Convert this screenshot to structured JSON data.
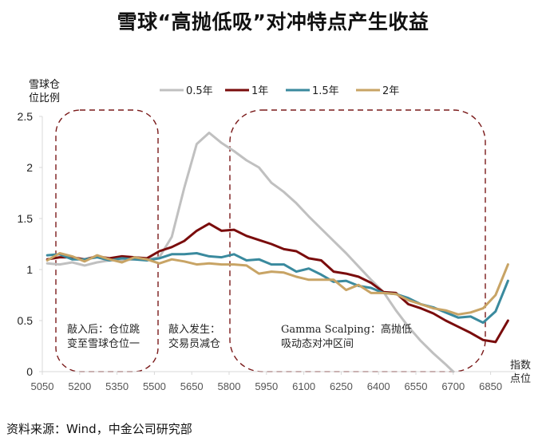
{
  "chart_data": {
    "type": "line",
    "title": "雪球“高抛低吸”对冲特点产生收益",
    "ylabel_lines": [
      "雪球仓",
      "位比例"
    ],
    "xlabel_lines": [
      "指数",
      "点位"
    ],
    "ylim": [
      0,
      2.5
    ],
    "xlim": [
      5050,
      6950
    ],
    "yticks": [
      "0",
      "0.5",
      "1",
      "1.5",
      "2",
      "2.5"
    ],
    "ytick_values": [
      0,
      0.5,
      1,
      1.5,
      2,
      2.5
    ],
    "xticks": [
      "5050",
      "5200",
      "5350",
      "5500",
      "5650",
      "5800",
      "5950",
      "6100",
      "6250",
      "6400",
      "6550",
      "6700",
      "6850"
    ],
    "xtick_values": [
      5050,
      5200,
      5350,
      5500,
      5650,
      5800,
      5950,
      6100,
      6250,
      6400,
      6550,
      6700,
      6850
    ],
    "legend_position": "top",
    "grid": false,
    "series": [
      {
        "name": "0.5年",
        "color": "#c0c0c0",
        "x": [
          5070,
          5120,
          5170,
          5220,
          5270,
          5320,
          5370,
          5420,
          5470,
          5520,
          5570,
          5620,
          5670,
          5720,
          5770,
          5820,
          5870,
          5920,
          5970,
          6020,
          6070,
          6120,
          6170,
          6220,
          6270,
          6320,
          6370,
          6420,
          6470,
          6520,
          6570,
          6620,
          6670,
          6700
        ],
        "y": [
          1.06,
          1.05,
          1.07,
          1.04,
          1.07,
          1.09,
          1.09,
          1.1,
          1.1,
          1.12,
          1.32,
          1.8,
          2.23,
          2.34,
          2.24,
          2.16,
          2.07,
          2.0,
          1.85,
          1.76,
          1.65,
          1.52,
          1.4,
          1.28,
          1.16,
          1.03,
          0.9,
          0.78,
          0.6,
          0.44,
          0.3,
          0.18,
          0.07,
          0.0
        ]
      },
      {
        "name": "1年",
        "color": "#7a0c0c",
        "x": [
          5070,
          5120,
          5170,
          5220,
          5270,
          5320,
          5370,
          5420,
          5470,
          5520,
          5570,
          5620,
          5670,
          5720,
          5770,
          5820,
          5870,
          5920,
          5970,
          6020,
          6070,
          6120,
          6170,
          6220,
          6270,
          6320,
          6370,
          6420,
          6470,
          6520,
          6570,
          6620,
          6670,
          6720,
          6770,
          6820,
          6870,
          6920
        ],
        "y": [
          1.1,
          1.12,
          1.12,
          1.1,
          1.13,
          1.11,
          1.13,
          1.12,
          1.11,
          1.18,
          1.22,
          1.28,
          1.38,
          1.45,
          1.38,
          1.39,
          1.33,
          1.29,
          1.25,
          1.2,
          1.18,
          1.11,
          1.09,
          0.98,
          0.96,
          0.93,
          0.87,
          0.78,
          0.77,
          0.66,
          0.62,
          0.57,
          0.5,
          0.44,
          0.38,
          0.31,
          0.29,
          0.5
        ]
      },
      {
        "name": "1.5年",
        "color": "#3a8a9e",
        "x": [
          5070,
          5120,
          5170,
          5220,
          5270,
          5320,
          5370,
          5420,
          5470,
          5520,
          5570,
          5620,
          5670,
          5720,
          5770,
          5820,
          5870,
          5920,
          5970,
          6020,
          6070,
          6120,
          6170,
          6220,
          6270,
          6320,
          6370,
          6420,
          6470,
          6520,
          6570,
          6620,
          6670,
          6720,
          6770,
          6820,
          6870,
          6920
        ],
        "y": [
          1.14,
          1.15,
          1.1,
          1.1,
          1.12,
          1.09,
          1.11,
          1.1,
          1.09,
          1.11,
          1.15,
          1.15,
          1.16,
          1.13,
          1.12,
          1.15,
          1.09,
          1.1,
          1.05,
          1.05,
          0.98,
          1.01,
          0.95,
          0.88,
          0.89,
          0.84,
          0.82,
          0.77,
          0.76,
          0.72,
          0.66,
          0.63,
          0.58,
          0.53,
          0.54,
          0.48,
          0.59,
          0.89
        ]
      },
      {
        "name": "2年",
        "color": "#c8a465",
        "x": [
          5070,
          5120,
          5170,
          5220,
          5270,
          5320,
          5370,
          5420,
          5470,
          5520,
          5570,
          5620,
          5670,
          5720,
          5770,
          5820,
          5870,
          5920,
          5970,
          6020,
          6070,
          6120,
          6170,
          6220,
          6270,
          6320,
          6370,
          6420,
          6470,
          6520,
          6570,
          6620,
          6670,
          6720,
          6770,
          6820,
          6870,
          6920
        ],
        "y": [
          1.09,
          1.16,
          1.13,
          1.08,
          1.14,
          1.1,
          1.07,
          1.12,
          1.1,
          1.06,
          1.1,
          1.08,
          1.05,
          1.06,
          1.05,
          1.05,
          1.04,
          0.96,
          0.98,
          0.97,
          0.93,
          0.9,
          0.9,
          0.9,
          0.8,
          0.85,
          0.77,
          0.77,
          0.76,
          0.7,
          0.66,
          0.62,
          0.6,
          0.56,
          0.58,
          0.62,
          0.75,
          1.05
        ]
      }
    ],
    "annotations": [
      {
        "lines": [
          "敲入后：仓位跳",
          "变至雪球仓位一"
        ]
      },
      {
        "lines": [
          "敲入发生：",
          "交易员减仓"
        ]
      },
      {
        "lines": [
          "Gamma Scalping：高抛低",
          "吸动态对冲区间"
        ]
      }
    ],
    "highlight_color": "#7a1a1a",
    "source": "资料来源：Wind，中金公司研究部"
  }
}
